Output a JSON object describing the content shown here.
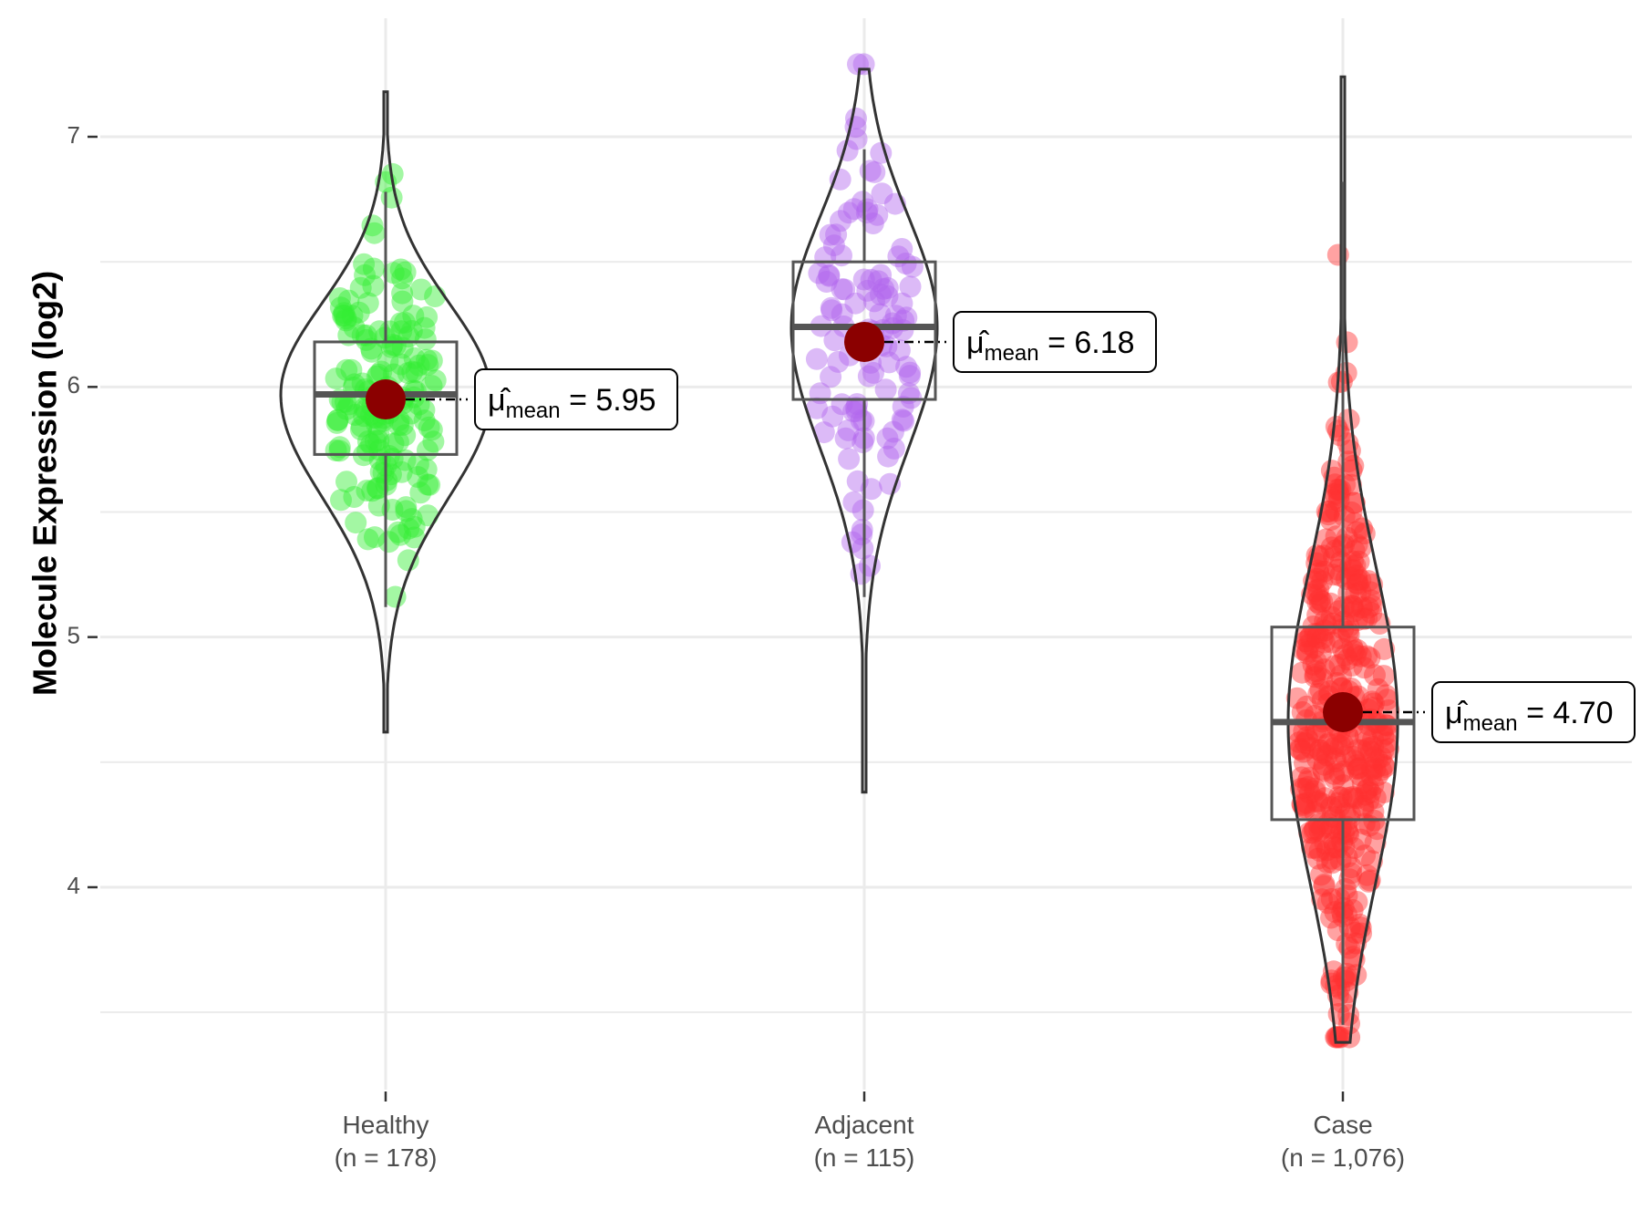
{
  "chart_data": {
    "type": "violin",
    "ylabel": "Molecule Expression (log2)",
    "ylim": [
      3.2,
      7.5
    ],
    "yticks": [
      4,
      5,
      6,
      7
    ],
    "grid": true,
    "groups": [
      {
        "category": "Healthy",
        "n_label": "(n = 178)",
        "color": "#33ee33",
        "box": {
          "q1": 5.73,
          "median": 5.97,
          "q3": 6.18,
          "whisker_low": 5.12,
          "whisker_high": 6.78
        },
        "violin_range": [
          4.62,
          7.18
        ],
        "mean": 5.95,
        "mean_symbol": "μ̂",
        "mean_sub": "mean",
        "mean_text": "= 5.95"
      },
      {
        "category": "Adjacent",
        "n_label": "(n = 115)",
        "color": "#b266ee",
        "box": {
          "q1": 5.95,
          "median": 6.24,
          "q3": 6.5,
          "whisker_low": 5.16,
          "whisker_high": 6.95
        },
        "violin_range": [
          4.38,
          7.27
        ],
        "mean": 6.18,
        "mean_symbol": "μ̂",
        "mean_sub": "mean",
        "mean_text": "= 6.18"
      },
      {
        "category": "Case",
        "n_label": "(n = 1,076)",
        "color": "#ff3030",
        "box": {
          "q1": 4.27,
          "median": 4.66,
          "q3": 5.04,
          "whisker_low": 3.45,
          "whisker_high": 6.82
        },
        "violin_range": [
          3.38,
          7.24
        ],
        "mean": 4.7,
        "mean_symbol": "μ̂",
        "mean_sub": "mean",
        "mean_text": "= 4.70"
      }
    ]
  },
  "colors": {
    "mean_point": "#8b0000",
    "outline": "#333333",
    "grid": "#ebebeb"
  }
}
